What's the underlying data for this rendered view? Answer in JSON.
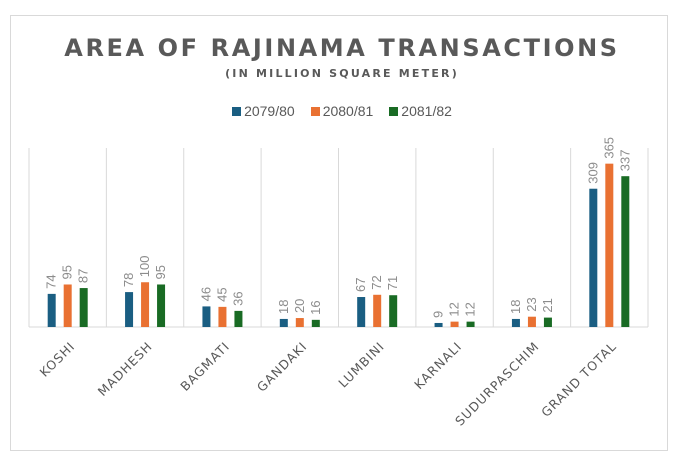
{
  "chart_data": {
    "type": "bar",
    "title": "AREA OF RAJINAMA TRANSACTIONS",
    "subtitle": "(IN MILLION SQUARE METER)",
    "xlabel": "",
    "ylabel": "",
    "ylim": [
      0,
      400
    ],
    "grid": "vertical category separators",
    "legend_position": "top",
    "categories": [
      "KOSHI",
      "MADHESH",
      "BAGMATI",
      "GANDAKI",
      "LUMBINI",
      "KARNALI",
      "SUDURPASCHIM",
      "GRAND TOTAL"
    ],
    "series": [
      {
        "name": "2079/80",
        "color": "#1a5e82",
        "values": [
          74,
          78,
          46,
          18,
          67,
          9,
          18,
          309
        ]
      },
      {
        "name": "2080/81",
        "color": "#e97132",
        "values": [
          95,
          100,
          45,
          20,
          72,
          12,
          23,
          365
        ]
      },
      {
        "name": "2081/82",
        "color": "#196b24",
        "values": [
          87,
          95,
          36,
          16,
          71,
          12,
          21,
          337
        ]
      }
    ]
  }
}
